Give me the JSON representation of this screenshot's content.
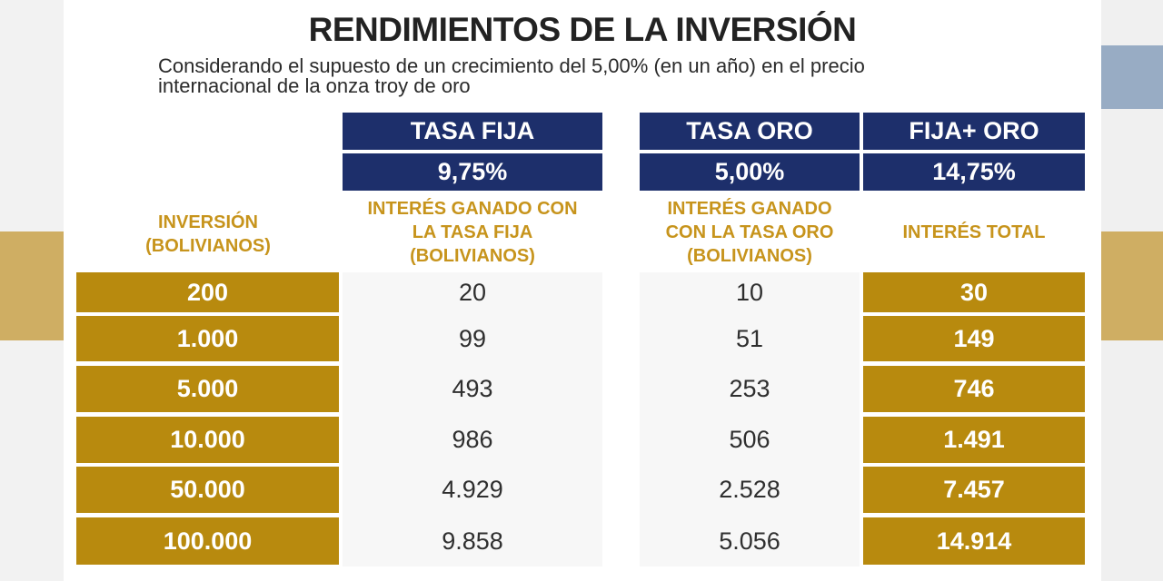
{
  "title": "RENDIMIENTOS DE LA INVERSIÓN",
  "subtitle_line1": "Considerando el supuesto de un crecimiento del 5,00% (en un año) en el precio",
  "subtitle_line2": "internacional de la onza troy de oro",
  "headers": {
    "tasa_fija": {
      "label": "TASA FIJA",
      "rate": "9,75%"
    },
    "tasa_oro": {
      "label": "TASA ORO",
      "rate": "5,00%"
    },
    "fija_oro": {
      "label": "FIJA+ ORO",
      "rate": "14,75%"
    }
  },
  "column_labels": {
    "inversion_1": "INVERSIÓN",
    "inversion_2": "(BOLIVIANOS)",
    "fija_1": "INTERÉS GANADO CON",
    "fija_2": "LA TASA FIJA",
    "fija_3": "(BOLIVIANOS)",
    "oro_1": "INTERÉS GANADO",
    "oro_2": "CON LA TASA ORO",
    "oro_3": "(BOLIVIANOS)",
    "total": "INTERÉS TOTAL"
  },
  "rows": [
    {
      "inversion": "200",
      "fija": "20",
      "oro": "10",
      "total": "30"
    },
    {
      "inversion": "1.000",
      "fija": "99",
      "oro": "51",
      "total": "149"
    },
    {
      "inversion": "5.000",
      "fija": "493",
      "oro": "253",
      "total": "746"
    },
    {
      "inversion": "10.000",
      "fija": "986",
      "oro": "506",
      "total": "1.491"
    },
    {
      "inversion": "50.000",
      "fija": "4.929",
      "oro": "2.528",
      "total": "7.457"
    },
    {
      "inversion": "100.000",
      "fija": "9.858",
      "oro": "5.056",
      "total": "14.914"
    }
  ],
  "colors": {
    "navy": "#1d2f6b",
    "gold": "#b88a0e",
    "gold_text": "#c7941c"
  }
}
